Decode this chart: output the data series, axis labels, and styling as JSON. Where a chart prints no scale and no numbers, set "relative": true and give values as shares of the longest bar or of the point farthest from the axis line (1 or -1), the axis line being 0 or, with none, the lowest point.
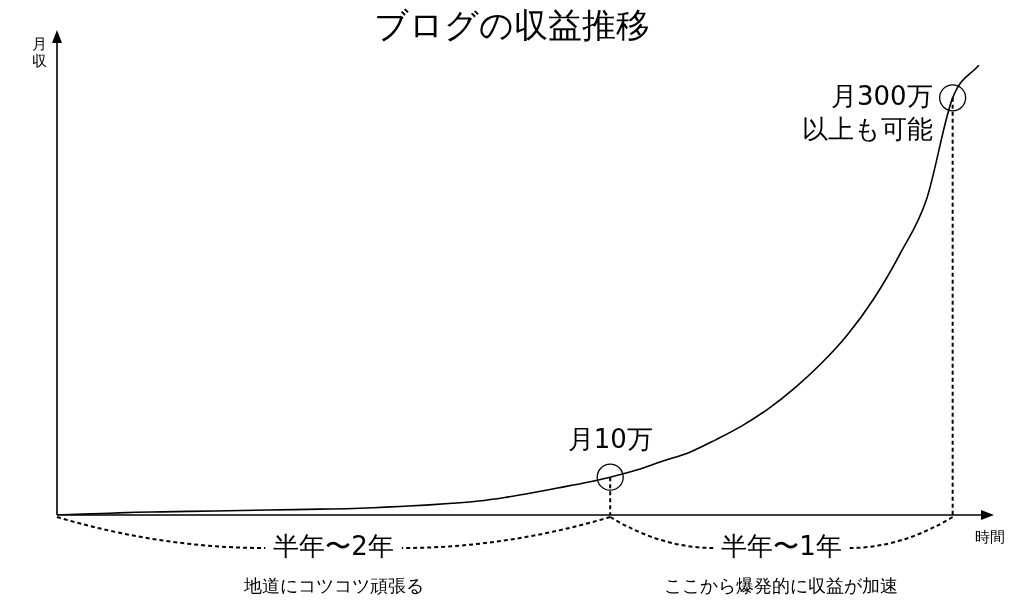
{
  "chart_data": {
    "type": "line",
    "relative": true,
    "title": "ブログの収益推移",
    "xlabel": "時間",
    "ylabel": "月収",
    "marker": "none",
    "categories": [
      null,
      null,
      null,
      null,
      null,
      null,
      null,
      null,
      null,
      null,
      null,
      null,
      null,
      null,
      null,
      null,
      null,
      null,
      null,
      null,
      null,
      null,
      null,
      null,
      null,
      null,
      null,
      null,
      null,
      null,
      null,
      null,
      null,
      null,
      null,
      null
    ],
    "series": [
      {
        "color": "#000000",
        "values": [
          0,
          0.002,
          0.004,
          0.006,
          0.007,
          0.008,
          0.009,
          0.01,
          0.011,
          0.012,
          0.013,
          0.014,
          0.016,
          0.019,
          0.022,
          0.026,
          0.031,
          0.039,
          0.049,
          0.06,
          0.071,
          0.084,
          0.1,
          0.12,
          0.139,
          0.167,
          0.198,
          0.236,
          0.282,
          0.336,
          0.4,
          0.48,
          0.58,
          0.7,
          0.927,
          1
        ]
      }
    ],
    "annotations": [
      {
        "text": "月10万",
        "y": 0.084
      },
      "月300万以上も可能",
      "半年〜2年",
      "地道にコツコツ頑張る",
      "半年〜1年",
      "ここから爆発的に収益が加速"
    ]
  }
}
